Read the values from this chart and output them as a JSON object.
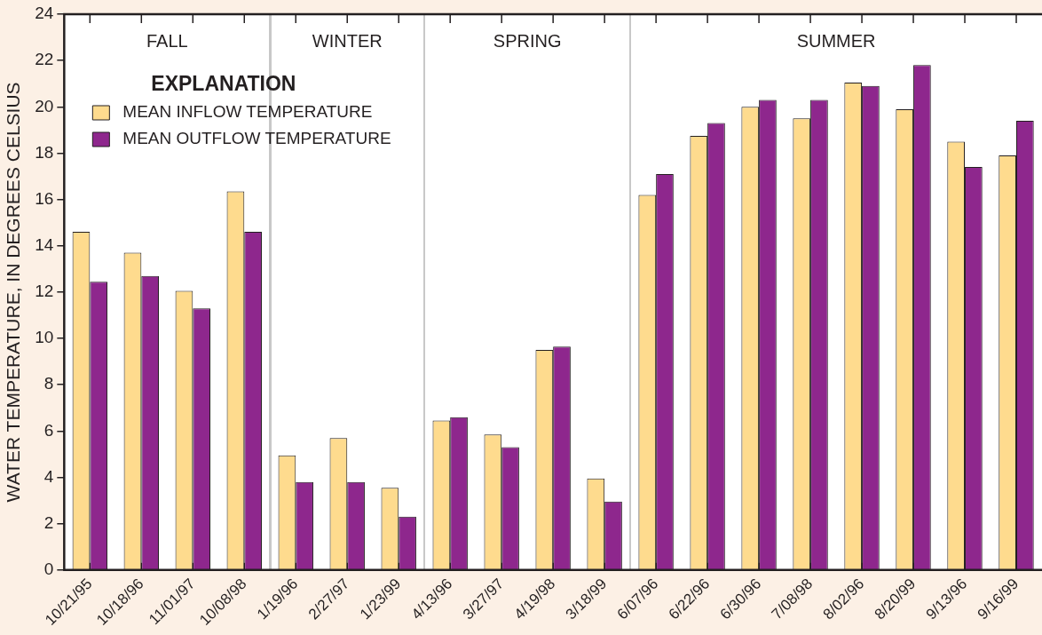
{
  "chart_data": {
    "type": "bar",
    "ylabel": "WATER TEMPERATURE, IN DEGREES CELSIUS",
    "legend_title": "EXPLANATION",
    "legend": "top left",
    "grid": false,
    "categories": [
      "10/21/95",
      "10/18/96",
      "11/01/97",
      "10/08/98",
      "1/19/96",
      "2/27/97",
      "1/23/99",
      "4/13/96",
      "3/27/97",
      "4/19/98",
      "3/18/99",
      "6/07/96",
      "6/22/96",
      "6/30/96",
      "7/08/98",
      "8/02/96",
      "8/20/99",
      "9/13/96",
      "9/16/99"
    ],
    "series": [
      {
        "name": "MEAN INFLOW TEMPERATURE",
        "color": "#fedb8e",
        "values": [
          14.6,
          13.7,
          12.05,
          16.35,
          4.95,
          5.7,
          3.55,
          6.45,
          5.85,
          9.5,
          3.95,
          16.2,
          18.75,
          20.0,
          19.5,
          21.05,
          19.9,
          18.5,
          17.9
        ]
      },
      {
        "name": "MEAN OUTFLOW TEMPERATURE",
        "color": "#8e278d",
        "values": [
          12.45,
          12.7,
          11.3,
          14.6,
          3.8,
          3.8,
          2.3,
          6.6,
          5.3,
          9.65,
          2.95,
          17.1,
          19.3,
          20.3,
          20.3,
          20.9,
          21.8,
          17.4,
          19.4
        ]
      }
    ],
    "ylim": [
      0,
      24
    ],
    "yticks": [
      0,
      2,
      4,
      6,
      8,
      10,
      12,
      14,
      16,
      18,
      20,
      22,
      24
    ],
    "annotations": [
      "FALL",
      "WINTER",
      "SPRING",
      "SUMMER"
    ]
  }
}
